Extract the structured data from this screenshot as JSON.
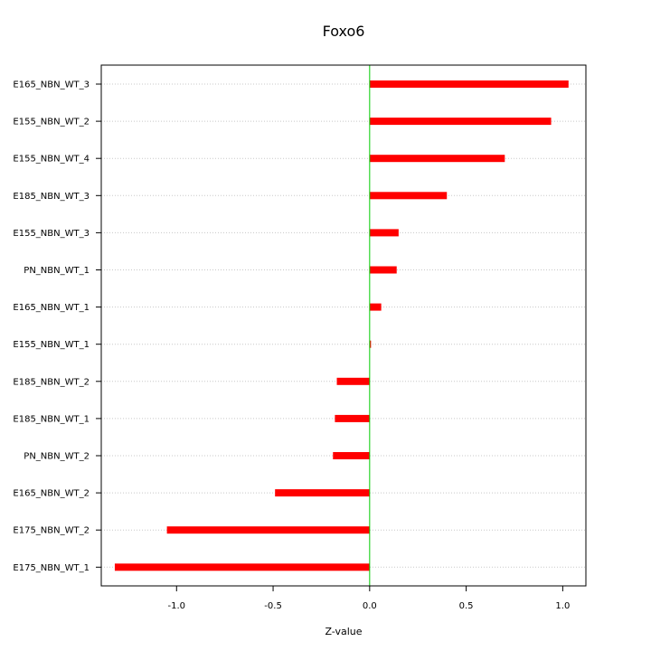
{
  "chart_data": {
    "type": "bar",
    "orientation": "horizontal",
    "title": "Foxo6",
    "xlabel": "Z-value",
    "ylabel": "",
    "xlim": [
      -1.39,
      1.12
    ],
    "x_ticks": [
      -1.0,
      -0.5,
      0.0,
      0.5,
      1.0
    ],
    "x_tick_labels": [
      "-1.0",
      "-0.5",
      "0.0",
      "0.5",
      "1.0"
    ],
    "grid": "horizontal dotted",
    "reference_line": {
      "x": 0,
      "color": "#00cc00"
    },
    "bar_color": "#ff0000",
    "categories": [
      "E165_NBN_WT_3",
      "E155_NBN_WT_2",
      "E155_NBN_WT_4",
      "E185_NBN_WT_3",
      "E155_NBN_WT_3",
      "PN_NBN_WT_1",
      "E165_NBN_WT_1",
      "E155_NBN_WT_1",
      "E185_NBN_WT_2",
      "E185_NBN_WT_1",
      "PN_NBN_WT_2",
      "E165_NBN_WT_2",
      "E175_NBN_WT_2",
      "E175_NBN_WT_1"
    ],
    "values": [
      1.03,
      0.94,
      0.7,
      0.4,
      0.15,
      0.14,
      0.06,
      0.005,
      -0.17,
      -0.18,
      -0.19,
      -0.49,
      -1.05,
      -1.32
    ]
  }
}
